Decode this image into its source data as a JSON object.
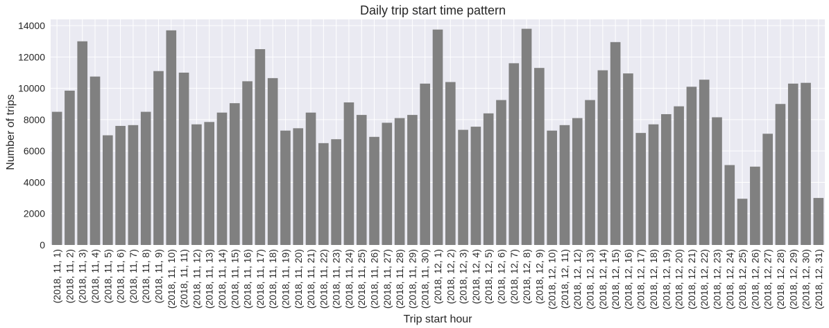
{
  "chart_data": {
    "type": "bar",
    "title": "Daily trip start time pattern",
    "xlabel": "Trip start hour",
    "ylabel": "Number of trips",
    "ylim": [
      0,
      14400
    ],
    "yticks": [
      0,
      2000,
      4000,
      6000,
      8000,
      10000,
      12000,
      14000
    ],
    "grid": true,
    "bar_color": "#808080",
    "background_color": "#eaeaf2",
    "grid_color": "#ffffff",
    "categories": [
      "(2018, 11, 1)",
      "(2018, 11, 2)",
      "(2018, 11, 3)",
      "(2018, 11, 4)",
      "(2018, 11, 5)",
      "(2018, 11, 6)",
      "(2018, 11, 7)",
      "(2018, 11, 8)",
      "(2018, 11, 9)",
      "(2018, 11, 10)",
      "(2018, 11, 11)",
      "(2018, 11, 12)",
      "(2018, 11, 13)",
      "(2018, 11, 14)",
      "(2018, 11, 15)",
      "(2018, 11, 16)",
      "(2018, 11, 17)",
      "(2018, 11, 18)",
      "(2018, 11, 19)",
      "(2018, 11, 20)",
      "(2018, 11, 21)",
      "(2018, 11, 22)",
      "(2018, 11, 23)",
      "(2018, 11, 24)",
      "(2018, 11, 25)",
      "(2018, 11, 26)",
      "(2018, 11, 27)",
      "(2018, 11, 28)",
      "(2018, 11, 29)",
      "(2018, 11, 30)",
      "(2018, 12, 1)",
      "(2018, 12, 2)",
      "(2018, 12, 3)",
      "(2018, 12, 4)",
      "(2018, 12, 5)",
      "(2018, 12, 6)",
      "(2018, 12, 7)",
      "(2018, 12, 8)",
      "(2018, 12, 9)",
      "(2018, 12, 10)",
      "(2018, 12, 11)",
      "(2018, 12, 12)",
      "(2018, 12, 13)",
      "(2018, 12, 14)",
      "(2018, 12, 15)",
      "(2018, 12, 16)",
      "(2018, 12, 17)",
      "(2018, 12, 18)",
      "(2018, 12, 19)",
      "(2018, 12, 20)",
      "(2018, 12, 21)",
      "(2018, 12, 22)",
      "(2018, 12, 23)",
      "(2018, 12, 24)",
      "(2018, 12, 25)",
      "(2018, 12, 26)",
      "(2018, 12, 27)",
      "(2018, 12, 28)",
      "(2018, 12, 29)",
      "(2018, 12, 30)",
      "(2018, 12, 31)"
    ],
    "values": [
      8500,
      9850,
      13000,
      10750,
      7000,
      7600,
      7650,
      8500,
      11100,
      13700,
      11000,
      7700,
      7850,
      8450,
      9050,
      10450,
      12500,
      10650,
      7300,
      7450,
      8450,
      6500,
      6750,
      9100,
      8300,
      6900,
      7800,
      8100,
      8300,
      10300,
      13750,
      10400,
      7350,
      7550,
      8400,
      9250,
      11600,
      13800,
      11300,
      7300,
      7650,
      8100,
      9250,
      11150,
      12950,
      10950,
      7150,
      7700,
      8350,
      8850,
      10100,
      10550,
      8150,
      5100,
      2950,
      5000,
      7100,
      9000,
      10300,
      10350,
      3000
    ]
  }
}
